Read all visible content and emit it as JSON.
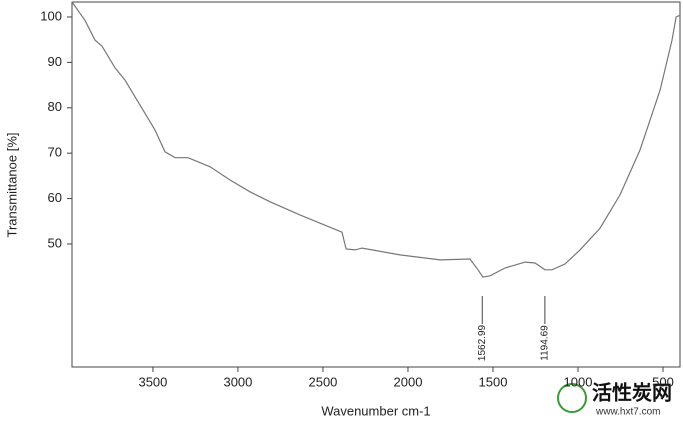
{
  "chart_data": {
    "type": "line",
    "xlabel": "Wavenumber cm-1",
    "ylabel": "Transmittanoe [%]",
    "x": [
      3976,
      3900,
      3841,
      3800,
      3723,
      3664,
      3576,
      3488,
      3429,
      3370,
      3294,
      3164,
      3047,
      2929,
      2811,
      2635,
      2388,
      2364,
      2311,
      2270,
      2047,
      1811,
      1635,
      1588,
      1559,
      1517,
      1429,
      1311,
      1253,
      1194,
      1153,
      1076,
      988,
      870,
      753,
      635,
      517,
      447,
      423,
      400
    ],
    "values": [
      103.3,
      99.3,
      94.9,
      93.6,
      88.8,
      86.1,
      80.6,
      75.1,
      70.3,
      69.0,
      69.0,
      67.0,
      64.1,
      61.5,
      59.3,
      56.4,
      52.6,
      48.9,
      48.7,
      49.1,
      47.6,
      46.5,
      46.7,
      44.3,
      42.7,
      43.0,
      44.7,
      46.0,
      45.8,
      44.3,
      44.3,
      45.6,
      48.7,
      53.5,
      60.8,
      70.7,
      83.9,
      94.9,
      100.0,
      100.4
    ],
    "color": "#777777",
    "xlim": [
      3976,
      400
    ],
    "ylim": [
      22.9,
      103.3
    ],
    "xticks": [
      3500,
      3000,
      2500,
      2000,
      1500,
      1000,
      500
    ],
    "yticks": [
      50,
      60,
      70,
      80,
      90,
      100
    ],
    "annotations": [
      1562.99,
      1194.69
    ]
  },
  "watermark": {
    "title": "活性炭网",
    "url": "www.hxt7.com"
  }
}
